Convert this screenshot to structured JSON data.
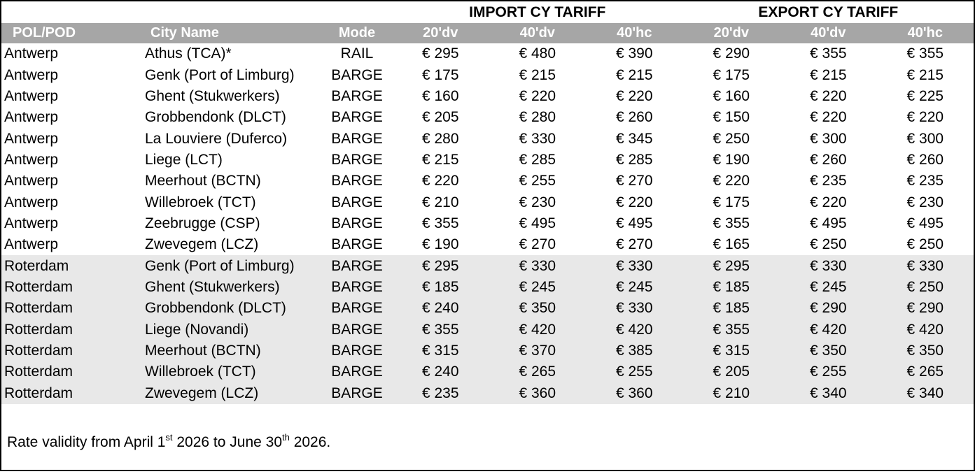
{
  "header": {
    "import_title": "IMPORT CY TARIFF",
    "export_title": "EXPORT CY TARIFF",
    "columns": [
      "POL/POD",
      "City Name",
      "Mode",
      "20'dv",
      "40'dv",
      "40'hc",
      "20'dv",
      "40'dv",
      "40'hc"
    ]
  },
  "table": {
    "currency": "€",
    "rows": [
      {
        "pol": "Antwerp",
        "city": "Athus (TCA)*",
        "mode": "RAIL",
        "import": [
          295,
          480,
          390
        ],
        "export": [
          290,
          355,
          355
        ],
        "shaded": false
      },
      {
        "pol": "Antwerp",
        "city": "Genk (Port of Limburg)",
        "mode": "BARGE",
        "import": [
          175,
          215,
          215
        ],
        "export": [
          175,
          215,
          215
        ],
        "shaded": false
      },
      {
        "pol": "Antwerp",
        "city": "Ghent (Stukwerkers)",
        "mode": "BARGE",
        "import": [
          160,
          220,
          220
        ],
        "export": [
          160,
          220,
          225
        ],
        "shaded": false
      },
      {
        "pol": "Antwerp",
        "city": "Grobbendonk (DLCT)",
        "mode": "BARGE",
        "import": [
          205,
          280,
          260
        ],
        "export": [
          150,
          220,
          220
        ],
        "shaded": false
      },
      {
        "pol": "Antwerp",
        "city": "La Louviere (Duferco)",
        "mode": "BARGE",
        "import": [
          280,
          330,
          345
        ],
        "export": [
          250,
          300,
          300
        ],
        "shaded": false
      },
      {
        "pol": "Antwerp",
        "city": "Liege (LCT)",
        "mode": "BARGE",
        "import": [
          215,
          285,
          285
        ],
        "export": [
          190,
          260,
          260
        ],
        "shaded": false
      },
      {
        "pol": "Antwerp",
        "city": "Meerhout (BCTN)",
        "mode": "BARGE",
        "import": [
          220,
          255,
          270
        ],
        "export": [
          220,
          235,
          235
        ],
        "shaded": false
      },
      {
        "pol": "Antwerp",
        "city": "Willebroek (TCT)",
        "mode": "BARGE",
        "import": [
          210,
          230,
          220
        ],
        "export": [
          175,
          220,
          230
        ],
        "shaded": false
      },
      {
        "pol": "Antwerp",
        "city": "Zeebrugge (CSP)",
        "mode": "BARGE",
        "import": [
          355,
          495,
          495
        ],
        "export": [
          355,
          495,
          495
        ],
        "shaded": false
      },
      {
        "pol": "Antwerp",
        "city": "Zwevegem (LCZ)",
        "mode": "BARGE",
        "import": [
          190,
          270,
          270
        ],
        "export": [
          165,
          250,
          250
        ],
        "shaded": false
      },
      {
        "pol": "Roterdam",
        "city": "Genk (Port of Limburg)",
        "mode": "BARGE",
        "import": [
          295,
          330,
          330
        ],
        "export": [
          295,
          330,
          330
        ],
        "shaded": true
      },
      {
        "pol": "Rotterdam",
        "city": "Ghent (Stukwerkers)",
        "mode": "BARGE",
        "import": [
          185,
          245,
          245
        ],
        "export": [
          185,
          245,
          250
        ],
        "shaded": true
      },
      {
        "pol": "Rotterdam",
        "city": "Grobbendonk (DLCT)",
        "mode": "BARGE",
        "import": [
          240,
          350,
          330
        ],
        "export": [
          185,
          290,
          290
        ],
        "shaded": true
      },
      {
        "pol": "Rotterdam",
        "city": "Liege (Novandi)",
        "mode": "BARGE",
        "import": [
          355,
          420,
          420
        ],
        "export": [
          355,
          420,
          420
        ],
        "shaded": true
      },
      {
        "pol": "Rotterdam",
        "city": "Meerhout (BCTN)",
        "mode": "BARGE",
        "import": [
          315,
          370,
          385
        ],
        "export": [
          315,
          350,
          350
        ],
        "shaded": true
      },
      {
        "pol": "Rotterdam",
        "city": "Willebroek (TCT)",
        "mode": "BARGE",
        "import": [
          240,
          265,
          255
        ],
        "export": [
          205,
          255,
          265
        ],
        "shaded": true
      },
      {
        "pol": "Rotterdam",
        "city": "Zwevegem (LCZ)",
        "mode": "BARGE",
        "import": [
          235,
          360,
          360
        ],
        "export": [
          210,
          340,
          340
        ],
        "shaded": true
      }
    ]
  },
  "footer": {
    "text_before_sup1": "Rate validity from April 1",
    "sup1": "st",
    "text_between": " 2026 to June 30",
    "sup2": "th",
    "text_after": " 2026."
  },
  "colors": {
    "header_bg": "#A6A6A6",
    "header_text": "#FFFFFF",
    "shaded_row_bg": "#E8E8E8",
    "border": "#000000"
  }
}
